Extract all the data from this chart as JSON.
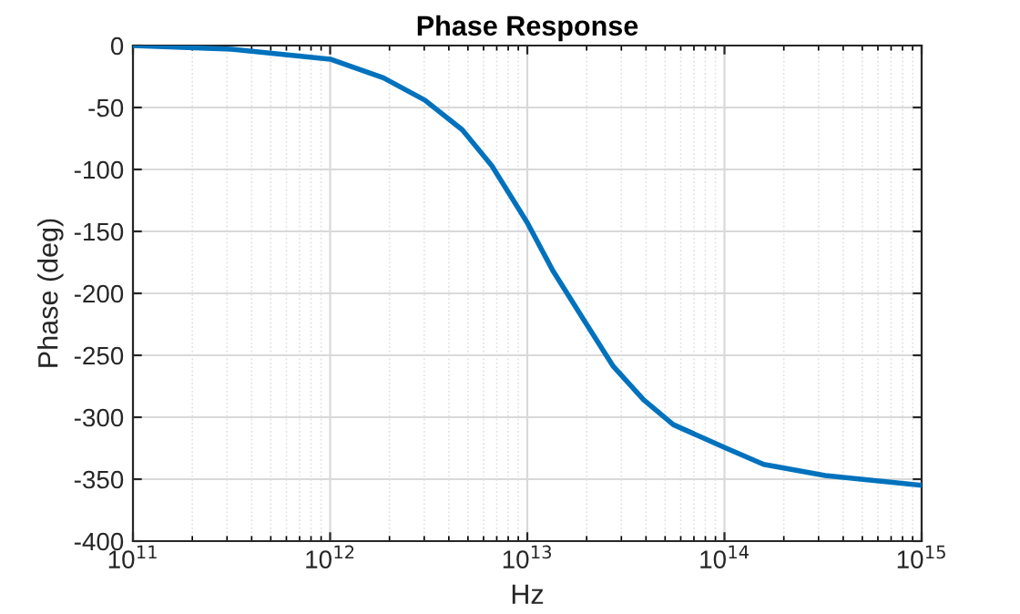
{
  "chart_data": {
    "type": "line",
    "title": "Phase Response",
    "xlabel": "Hz",
    "ylabel": "Phase (deg)",
    "log": "x",
    "x": [
      100000000000.0,
      316000000000.0,
      1000000000000.0,
      1860000000000.0,
      3020000000000.0,
      4680000000000.0,
      6610000000000.0,
      10000000000000.0,
      13400000000000.0,
      19100000000000.0,
      27300000000000.0,
      38900000000000.0,
      55000000000000.0,
      102000000000000.0,
      158000000000000.0,
      324000000000000.0,
      1000000000000000.0
    ],
    "series": [
      {
        "color": "#0072bd",
        "values": [
          0,
          -3,
          -11,
          -26,
          -44,
          -68,
          -97,
          -143,
          -181,
          -220,
          -259,
          -286,
          -306,
          -325,
          -338,
          -347,
          -355
        ]
      }
    ],
    "xlim": [
      100000000000.0,
      1000000000000000.0
    ],
    "ylim": [
      -400,
      0
    ],
    "xticks": [
      {
        "value": 100000000000.0,
        "label": "10$^{11}$"
      },
      {
        "value": 1000000000000.0,
        "label": "10$^{12}$"
      },
      {
        "value": 10000000000000.0,
        "label": "10$^{13}$"
      },
      {
        "value": 100000000000000.0,
        "label": "10$^{14}$"
      },
      {
        "value": 1000000000000000.0,
        "label": "10$^{15}$"
      }
    ],
    "yticks": [
      -400,
      -350,
      -300,
      -250,
      -200,
      -150,
      -100,
      -50,
      0
    ],
    "grid": true,
    "line_style": "solid",
    "marker": "none"
  }
}
